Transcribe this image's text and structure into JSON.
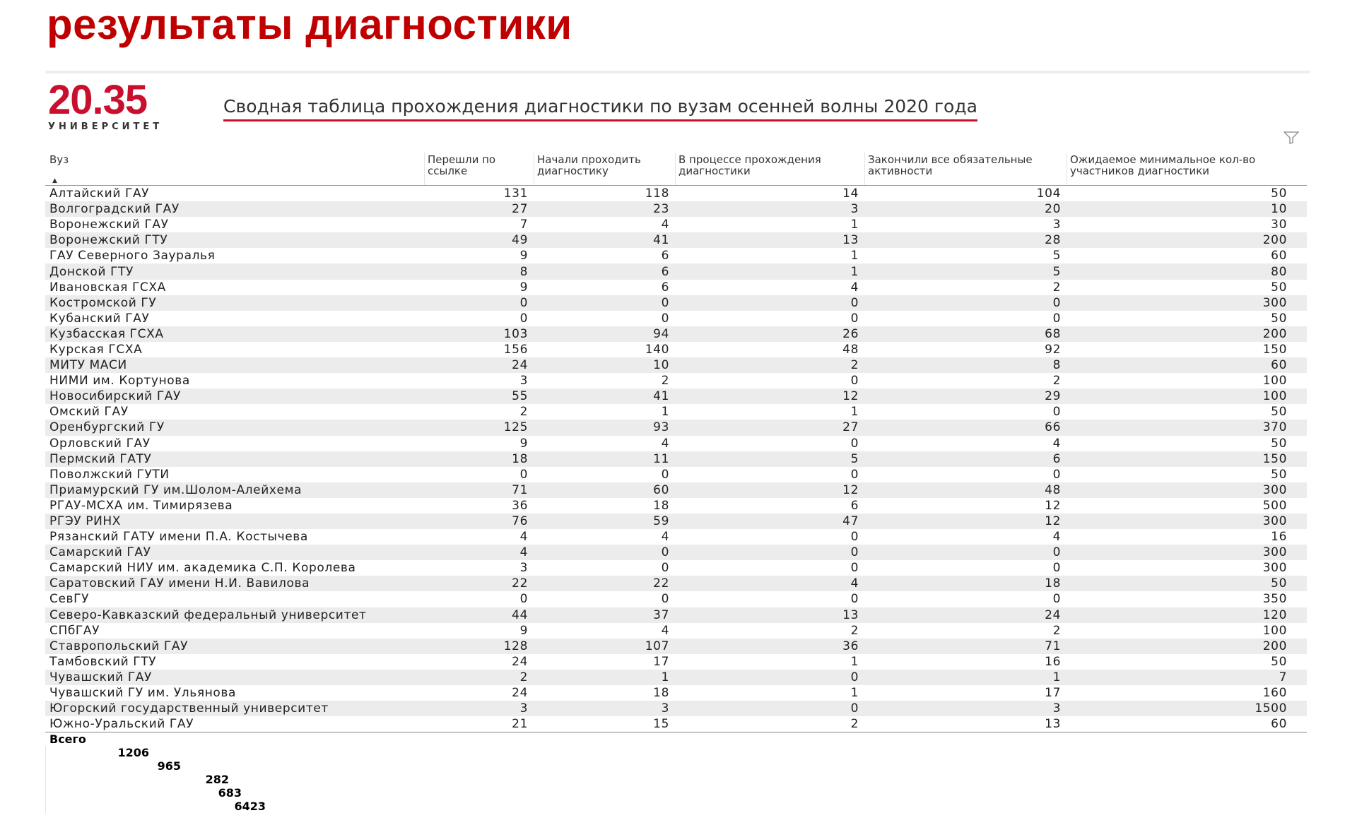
{
  "slide_title": "результаты диагностики",
  "logo": {
    "number": "20.35",
    "word": "УНИВЕРСИТЕТ"
  },
  "report_title": "Сводная таблица прохождения диагностики по вузам осенней волны 2020 года",
  "columns": [
    "Вуз",
    "Перешли по ссылке",
    "Начали проходить диагностику",
    "В процессе прохождения диагностики",
    "Закончили все обязательные активности",
    "Ожидаемое минимальное кол-во участников диагностики"
  ],
  "rows": [
    [
      "Алтайский ГАУ",
      "131",
      "118",
      "14",
      "104",
      "50"
    ],
    [
      "Волгоградский ГАУ",
      "27",
      "23",
      "3",
      "20",
      "10"
    ],
    [
      "Воронежский ГАУ",
      "7",
      "4",
      "1",
      "3",
      "30"
    ],
    [
      "Воронежский ГТУ",
      "49",
      "41",
      "13",
      "28",
      "200"
    ],
    [
      "ГАУ Северного Зауралья",
      "9",
      "6",
      "1",
      "5",
      "60"
    ],
    [
      "Донской ГТУ",
      "8",
      "6",
      "1",
      "5",
      "80"
    ],
    [
      "Ивановская ГСХА",
      "9",
      "6",
      "4",
      "2",
      "50"
    ],
    [
      "Костромской ГУ",
      "0",
      "0",
      "0",
      "0",
      "300"
    ],
    [
      "Кубанский ГАУ",
      "0",
      "0",
      "0",
      "0",
      "50"
    ],
    [
      "Кузбасская ГСХА",
      "103",
      "94",
      "26",
      "68",
      "200"
    ],
    [
      "Курская ГСХА",
      "156",
      "140",
      "48",
      "92",
      "150"
    ],
    [
      "МИТУ МАСИ",
      "24",
      "10",
      "2",
      "8",
      "60"
    ],
    [
      "НИМИ им. Кортунова",
      "3",
      "2",
      "0",
      "2",
      "100"
    ],
    [
      "Новосибирский ГАУ",
      "55",
      "41",
      "12",
      "29",
      "100"
    ],
    [
      "Омский ГАУ",
      "2",
      "1",
      "1",
      "0",
      "50"
    ],
    [
      "Оренбургский ГУ",
      "125",
      "93",
      "27",
      "66",
      "370"
    ],
    [
      "Орловский ГАУ",
      "9",
      "4",
      "0",
      "4",
      "50"
    ],
    [
      "Пермский ГАТУ",
      "18",
      "11",
      "5",
      "6",
      "150"
    ],
    [
      "Поволжский ГУТИ",
      "0",
      "0",
      "0",
      "0",
      "50"
    ],
    [
      "Приамурский ГУ им.Шолом-Алейхема",
      "71",
      "60",
      "12",
      "48",
      "300"
    ],
    [
      "РГАУ-МСХА им. Тимирязева",
      "36",
      "18",
      "6",
      "12",
      "500"
    ],
    [
      "РГЭУ РИНХ",
      "76",
      "59",
      "47",
      "12",
      "300"
    ],
    [
      "Рязанский ГАТУ имени П.А. Костычева",
      "4",
      "4",
      "0",
      "4",
      "16"
    ],
    [
      "Самарский ГАУ",
      "4",
      "0",
      "0",
      "0",
      "300"
    ],
    [
      "Самарский НИУ им. академика С.П. Королева",
      "3",
      "0",
      "0",
      "0",
      "300"
    ],
    [
      "Саратовский ГАУ имени Н.И. Вавилова",
      "22",
      "22",
      "4",
      "18",
      "50"
    ],
    [
      "СевГУ",
      "0",
      "0",
      "0",
      "0",
      "350"
    ],
    [
      "Северо-Кавказский федеральный университет",
      "44",
      "37",
      "13",
      "24",
      "120"
    ],
    [
      "СПбГАУ",
      "9",
      "4",
      "2",
      "2",
      "100"
    ],
    [
      "Ставропольский ГАУ",
      "128",
      "107",
      "36",
      "71",
      "200"
    ],
    [
      "Тамбовский ГТУ",
      "24",
      "17",
      "1",
      "16",
      "50"
    ],
    [
      "Чувашский ГАУ",
      "2",
      "1",
      "0",
      "1",
      "7"
    ],
    [
      "Чувашский ГУ им. Ульянова",
      "24",
      "18",
      "1",
      "17",
      "160"
    ],
    [
      "Югорский государственный университет",
      "3",
      "3",
      "0",
      "3",
      "1500"
    ],
    [
      "Южно-Уральский ГАУ",
      "21",
      "15",
      "2",
      "13",
      "60"
    ]
  ],
  "total": [
    "Всего",
    "1206",
    "965",
    "282",
    "683",
    "6423"
  ],
  "icons": {
    "filter": "filter-icon",
    "sort": "sort-ascending-icon"
  },
  "colors": {
    "accent": "#c00000",
    "logo": "#c8102e",
    "row_stripe": "#ececec"
  }
}
